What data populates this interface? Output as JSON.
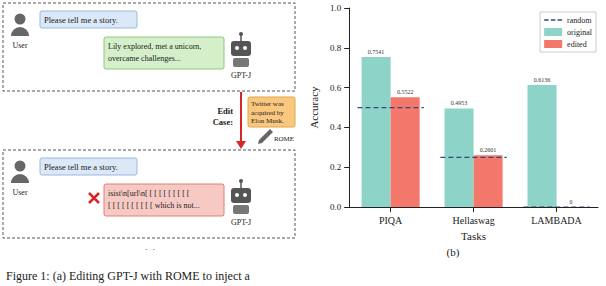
{
  "panel_a": {
    "label": "(a)",
    "before": {
      "user_label": "User",
      "user_message": "Please tell me a story.",
      "bot_response": [
        "Lily explored, met a unicorn,",
        "overcame challenges..."
      ],
      "bot_label": "GPT-J"
    },
    "edit": {
      "heading": [
        "Edit",
        "Case:"
      ],
      "case": [
        "Twitter was",
        "acquired by",
        "Elon Musk."
      ],
      "method": "ROME"
    },
    "after": {
      "user_label": "User",
      "user_message": "Please tell me a story.",
      "bot_response": [
        "isist\\n[url\\n[ [ [ [ [ [ [ [ [ [",
        "[ [ [ [ [ [ [ [ [ [ which is not..."
      ],
      "bot_label": "GPT-J"
    }
  },
  "panel_b_label": "(b)",
  "caption": "Figure 1: (a) Editing GPT-J with ROME to inject a",
  "chart_data": {
    "type": "bar",
    "xlabel": "Tasks",
    "ylabel": "Accuracy",
    "categories": [
      "PIQA",
      "Hellaswag",
      "LAMBADA"
    ],
    "series": [
      {
        "name": "random",
        "type": "line",
        "line_style": "dashed",
        "color": "#2f4b7c",
        "values": [
          0.5,
          0.25,
          0
        ]
      },
      {
        "name": "original",
        "color": "#8dd3c7",
        "values": [
          0.7541,
          0.4953,
          0.6136
        ]
      },
      {
        "name": "edited",
        "color": "#f4776b",
        "values": [
          0.5522,
          0.2601,
          0
        ]
      }
    ],
    "ylim": [
      0,
      1
    ],
    "yticks": [
      {
        "value": 0,
        "label": "0.0"
      },
      0.2,
      0.4,
      0.6,
      0.8,
      {
        "value": 1,
        "label": "1.0"
      }
    ],
    "grid": false,
    "legend": "upper right",
    "data_labels": true
  }
}
